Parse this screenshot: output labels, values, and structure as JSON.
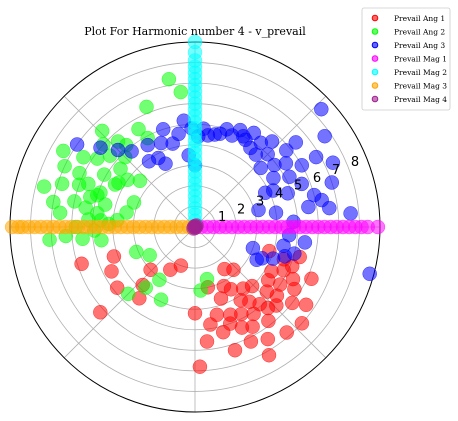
{
  "chart_data": {
    "type": "scatter",
    "projection": "polar",
    "title": "Plot For Harmonic number 4 - v_prevail",
    "radial_ticks": [
      "1",
      "2",
      "3",
      "4",
      "5",
      "6",
      "7",
      "8"
    ],
    "rlim": [
      0,
      9
    ],
    "grid": true,
    "legend_placement": "top-right outside",
    "series": [
      {
        "name": "Prevail Ang 1",
        "color": "#ff0000",
        "points": [
          [
            290,
            5.0
          ],
          [
            292,
            4.6
          ],
          [
            295,
            5.4
          ],
          [
            298,
            4.8
          ],
          [
            300,
            5.6
          ],
          [
            302,
            4.2
          ],
          [
            304,
            5.1
          ],
          [
            306,
            4.5
          ],
          [
            308,
            5.8
          ],
          [
            310,
            4.9
          ],
          [
            312,
            5.3
          ],
          [
            314,
            4.0
          ],
          [
            316,
            5.5
          ],
          [
            318,
            4.7
          ],
          [
            320,
            5.2
          ],
          [
            322,
            6.0
          ],
          [
            324,
            4.4
          ],
          [
            326,
            5.0
          ],
          [
            328,
            5.7
          ],
          [
            330,
            4.3
          ],
          [
            332,
            5.4
          ],
          [
            334,
            4.8
          ],
          [
            336,
            6.2
          ],
          [
            338,
            5.1
          ],
          [
            340,
            4.6
          ],
          [
            342,
            3.8
          ],
          [
            344,
            5.3
          ],
          [
            296,
            6.2
          ],
          [
            303,
            6.5
          ],
          [
            311,
            6.8
          ],
          [
            318,
            7.0
          ],
          [
            325,
            6.6
          ],
          [
            300,
            7.2
          ],
          [
            288,
            6.3
          ],
          [
            284,
            4.4
          ],
          [
            276,
            5.6
          ],
          [
            272,
            6.8
          ],
          [
            270,
            4.2
          ],
          [
            282,
            3.0
          ],
          [
            300,
            3.5
          ],
          [
            312,
            2.8
          ],
          [
            228,
            3.8
          ],
          [
            224,
            3.0
          ],
          [
            218,
            4.8
          ],
          [
            208,
            4.6
          ],
          [
            200,
            4.2
          ],
          [
            198,
            5.8
          ],
          [
            222,
            6.2
          ],
          [
            232,
            4.4
          ],
          [
            240,
            2.4
          ],
          [
            250,
            2.0
          ],
          [
            308,
            3.8
          ],
          [
            296,
            3.2
          ],
          [
            285,
            5.3
          ],
          [
            279,
            4.8
          ],
          [
            290,
            3.7
          ],
          [
            305,
            2.5
          ]
        ]
      },
      {
        "name": "Prevail Ang 2",
        "color": "#00ff00",
        "points": [
          [
            130,
            5.2
          ],
          [
            132,
            5.6
          ],
          [
            135,
            4.8
          ],
          [
            138,
            6.0
          ],
          [
            140,
            5.4
          ],
          [
            142,
            4.6
          ],
          [
            145,
            5.8
          ],
          [
            148,
            6.4
          ],
          [
            150,
            5.1
          ],
          [
            152,
            4.4
          ],
          [
            155,
            6.2
          ],
          [
            158,
            5.6
          ],
          [
            160,
            4.9
          ],
          [
            162,
            6.8
          ],
          [
            164,
            5.3
          ],
          [
            166,
            4.5
          ],
          [
            168,
            6.0
          ],
          [
            170,
            5.4
          ],
          [
            172,
            4.8
          ],
          [
            174,
            6.6
          ],
          [
            176,
            5.2
          ],
          [
            178,
            4.2
          ],
          [
            180,
            5.8
          ],
          [
            182,
            4.9
          ],
          [
            184,
            6.3
          ],
          [
            186,
            5.5
          ],
          [
            188,
            4.6
          ],
          [
            185,
            7.1
          ],
          [
            165,
            7.6
          ],
          [
            155,
            7.0
          ],
          [
            150,
            7.4
          ],
          [
            160,
            6.0
          ],
          [
            170,
            7.0
          ],
          [
            175,
            3.8
          ],
          [
            168,
            3.4
          ],
          [
            158,
            3.2
          ],
          [
            145,
            4.0
          ],
          [
            140,
            3.5
          ],
          [
            120,
            5.5
          ],
          [
            118,
            4.9
          ],
          [
            112,
            6.3
          ],
          [
            100,
            7.3
          ],
          [
            96,
            6.6
          ],
          [
            203,
            3.1
          ],
          [
            212,
            2.6
          ],
          [
            225,
            4.6
          ],
          [
            231,
            3.8
          ],
          [
            236,
            3.1
          ],
          [
            245,
            3.9
          ],
          [
            275,
            3.1
          ],
          [
            283,
            2.6
          ],
          [
            150,
            4.3
          ],
          [
            176,
            4.6
          ],
          [
            162,
            5.0
          ],
          [
            134,
            6.5
          ]
        ]
      },
      {
        "name": "Prevail Ang 3",
        "color": "#0000ff",
        "points": [
          [
            20,
            4.8
          ],
          [
            22,
            5.6
          ],
          [
            25,
            4.2
          ],
          [
            28,
            5.2
          ],
          [
            30,
            6.0
          ],
          [
            32,
            4.5
          ],
          [
            35,
            5.4
          ],
          [
            38,
            4.9
          ],
          [
            40,
            5.8
          ],
          [
            42,
            4.3
          ],
          [
            45,
            5.0
          ],
          [
            48,
            5.6
          ],
          [
            50,
            4.6
          ],
          [
            52,
            5.2
          ],
          [
            55,
            4.7
          ],
          [
            58,
            5.4
          ],
          [
            60,
            4.9
          ],
          [
            62,
            5.0
          ],
          [
            65,
            5.2
          ],
          [
            68,
            4.8
          ],
          [
            72,
            5.0
          ],
          [
            75,
            4.7
          ],
          [
            78,
            4.6
          ],
          [
            82,
            4.5
          ],
          [
            85,
            4.8
          ],
          [
            88,
            4.4
          ],
          [
            92,
            4.8
          ],
          [
            96,
            5.2
          ],
          [
            100,
            4.6
          ],
          [
            105,
            4.2
          ],
          [
            108,
            5.0
          ],
          [
            112,
            4.4
          ],
          [
            118,
            3.8
          ],
          [
            120,
            4.6
          ],
          [
            125,
            3.9
          ],
          [
            130,
            4.8
          ],
          [
            135,
            5.3
          ],
          [
            140,
            6.0
          ],
          [
            145,
            7.0
          ],
          [
            115,
            3.4
          ],
          [
            90,
            3.0
          ],
          [
            95,
            3.5
          ],
          [
            10,
            5.6
          ],
          [
            12,
            6.3
          ],
          [
            15,
            6.0
          ],
          [
            18,
            7.0
          ],
          [
            5,
            7.6
          ],
          [
            8,
            6.6
          ],
          [
            3,
            4.8
          ],
          [
            -5,
            4.6
          ],
          [
            -8,
            5.4
          ],
          [
            -12,
            4.4
          ],
          [
            -15,
            5.0
          ],
          [
            -18,
            4.6
          ],
          [
            -22,
            4.1
          ],
          [
            -25,
            3.6
          ],
          [
            -20,
            3.0
          ],
          [
            -28,
            3.4
          ],
          [
            -15,
            8.8
          ],
          [
            25,
            7.4
          ],
          [
            35,
            7.7
          ],
          [
            43,
            8.4
          ],
          [
            30,
            6.8
          ],
          [
            40,
            6.4
          ],
          [
            10,
            4.0
          ],
          [
            15,
            3.2
          ],
          [
            26,
            3.8
          ]
        ]
      },
      {
        "name": "Prevail Mag 1",
        "color": "#ff00ff",
        "points": [
          [
            0,
            0.3
          ],
          [
            0,
            0.6
          ],
          [
            0,
            0.9
          ],
          [
            0,
            1.2
          ],
          [
            0,
            1.5
          ],
          [
            0,
            1.8
          ],
          [
            0,
            2.1
          ],
          [
            0,
            2.4
          ],
          [
            0,
            2.7
          ],
          [
            0,
            3.0
          ],
          [
            0,
            3.3
          ],
          [
            0,
            3.6
          ],
          [
            0,
            3.9
          ],
          [
            0,
            4.2
          ],
          [
            0,
            4.5
          ],
          [
            0,
            4.8
          ],
          [
            0,
            5.1
          ],
          [
            0,
            5.4
          ],
          [
            0,
            5.7
          ],
          [
            0,
            6.0
          ],
          [
            0,
            6.3
          ],
          [
            0,
            6.6
          ],
          [
            0,
            6.9
          ],
          [
            0,
            7.2
          ],
          [
            0,
            7.5
          ],
          [
            0,
            7.8
          ],
          [
            0,
            8.1
          ],
          [
            0,
            8.4
          ],
          [
            0,
            8.9
          ]
        ]
      },
      {
        "name": "Prevail Mag 2",
        "color": "#00ffff",
        "points": [
          [
            90,
            0.3
          ],
          [
            90,
            0.6
          ],
          [
            90,
            0.9
          ],
          [
            90,
            1.2
          ],
          [
            90,
            1.5
          ],
          [
            90,
            1.8
          ],
          [
            90,
            2.1
          ],
          [
            90,
            2.4
          ],
          [
            90,
            2.7
          ],
          [
            90,
            3.0
          ],
          [
            90,
            3.3
          ],
          [
            90,
            3.6
          ],
          [
            90,
            3.9
          ],
          [
            90,
            4.2
          ],
          [
            90,
            4.5
          ],
          [
            90,
            4.8
          ],
          [
            90,
            5.1
          ],
          [
            90,
            5.4
          ],
          [
            90,
            5.7
          ],
          [
            90,
            6.0
          ],
          [
            90,
            6.3
          ],
          [
            90,
            6.6
          ],
          [
            90,
            6.9
          ],
          [
            90,
            7.2
          ],
          [
            90,
            7.5
          ],
          [
            90,
            7.8
          ],
          [
            90,
            8.1
          ],
          [
            90,
            8.5
          ],
          [
            90,
            9.0
          ]
        ]
      },
      {
        "name": "Prevail Mag 3",
        "color": "#ffa500",
        "points": [
          [
            180,
            0.3
          ],
          [
            180,
            0.6
          ],
          [
            180,
            0.9
          ],
          [
            180,
            1.2
          ],
          [
            180,
            1.5
          ],
          [
            180,
            1.8
          ],
          [
            180,
            2.1
          ],
          [
            180,
            2.4
          ],
          [
            180,
            2.7
          ],
          [
            180,
            3.0
          ],
          [
            180,
            3.3
          ],
          [
            180,
            3.6
          ],
          [
            180,
            3.9
          ],
          [
            180,
            4.2
          ],
          [
            180,
            4.5
          ],
          [
            180,
            4.8
          ],
          [
            180,
            5.1
          ],
          [
            180,
            5.4
          ],
          [
            180,
            5.7
          ],
          [
            180,
            6.0
          ],
          [
            180,
            6.3
          ],
          [
            180,
            6.6
          ],
          [
            180,
            6.9
          ],
          [
            180,
            7.2
          ],
          [
            180,
            7.5
          ],
          [
            180,
            7.8
          ],
          [
            180,
            8.1
          ],
          [
            180,
            8.4
          ],
          [
            180,
            8.6
          ],
          [
            180,
            8.9
          ]
        ]
      },
      {
        "name": "Prevail Mag 4",
        "color": "#a0208f",
        "points": [
          [
            0,
            0.05
          ],
          [
            90,
            0.05
          ],
          [
            180,
            0.05
          ],
          [
            270,
            0.05
          ],
          [
            45,
            0.1
          ],
          [
            225,
            0.1
          ]
        ]
      }
    ]
  }
}
